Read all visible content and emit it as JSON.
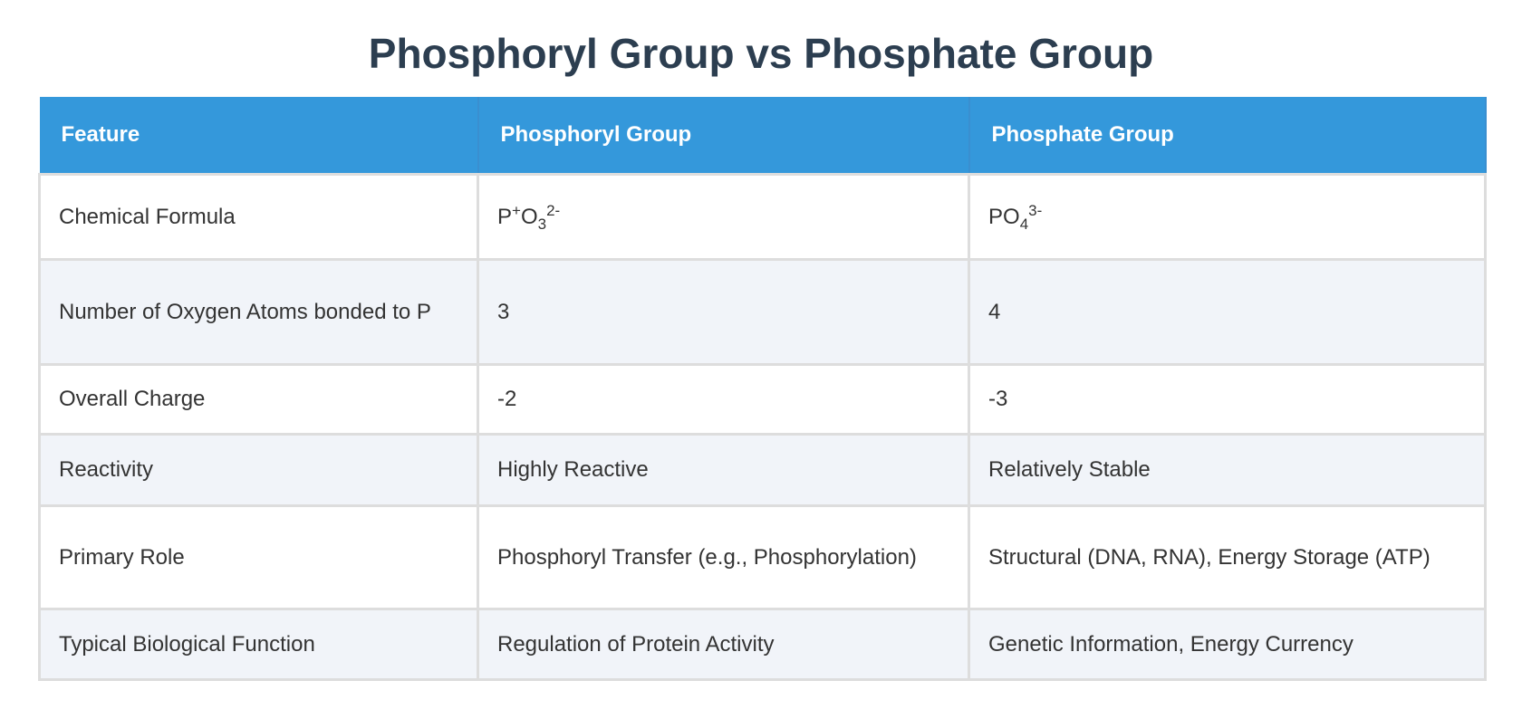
{
  "title": "Phosphoryl Group vs Phosphate Group",
  "table": {
    "header": [
      "Feature",
      "Phosphoryl Group",
      "Phosphate Group"
    ],
    "rows": [
      [
        "Chemical Formula",
        [
          {
            "text": "P"
          },
          {
            "text": "+",
            "script": "sup"
          },
          {
            "text": "O"
          },
          {
            "text": "3",
            "script": "sub"
          },
          {
            "text": "2-",
            "script": "sup"
          }
        ],
        [
          {
            "text": "PO"
          },
          {
            "text": "4",
            "script": "sub"
          },
          {
            "text": "3-",
            "script": "sup"
          }
        ]
      ],
      [
        "Number of Oxygen Atoms bonded to P",
        "3",
        "4"
      ],
      [
        "Overall Charge",
        "-2",
        "-3"
      ],
      [
        "Reactivity",
        "Highly Reactive",
        "Relatively Stable"
      ],
      [
        "Primary Role",
        "Phosphoryl Transfer (e.g., Phosphorylation)",
        "Structural (DNA, RNA), Energy Storage (ATP)"
      ],
      [
        "Typical Biological Function",
        "Regulation of Protein Activity",
        "Genetic Information, Energy Currency"
      ]
    ]
  }
}
